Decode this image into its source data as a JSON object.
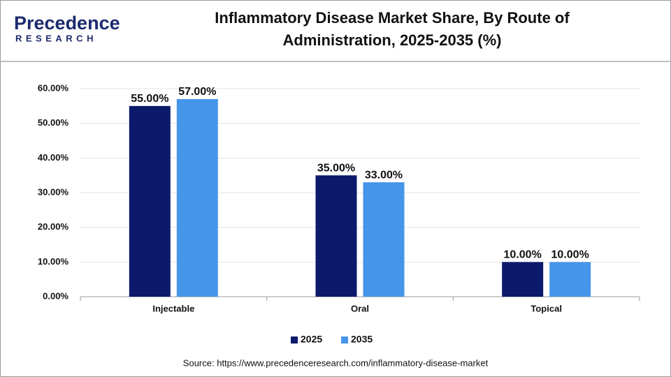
{
  "logo": {
    "name": "Precedence",
    "tagline": "RESEARCH"
  },
  "chart_data": {
    "type": "bar",
    "title": "Inflammatory Disease Market Share, By Route of Administration, 2025-2035 (%)",
    "categories": [
      "Injectable",
      "Oral",
      "Topical"
    ],
    "series": [
      {
        "name": "2025",
        "color": "#0b1a6b",
        "values": [
          55,
          35,
          10
        ],
        "value_labels": [
          "55.00%",
          "35.00%",
          "10.00%"
        ]
      },
      {
        "name": "2035",
        "color": "#4595ea",
        "values": [
          57,
          33,
          10
        ],
        "value_labels": [
          "57.00%",
          "33.00%",
          "10.00%"
        ]
      }
    ],
    "ylim": [
      0,
      60
    ],
    "yticks": [
      {
        "value": 0,
        "label": "0.00%"
      },
      {
        "value": 10,
        "label": "10.00%"
      },
      {
        "value": 20,
        "label": "20.00%"
      },
      {
        "value": 30,
        "label": "30.00%"
      },
      {
        "value": 40,
        "label": "40.00%"
      },
      {
        "value": 50,
        "label": "50.00%"
      },
      {
        "value": 60,
        "label": "60.00%"
      }
    ],
    "grid": true,
    "legend": "bottom",
    "source": "Source: https://www.precedenceresearch.com/inflammatory-disease-market"
  }
}
